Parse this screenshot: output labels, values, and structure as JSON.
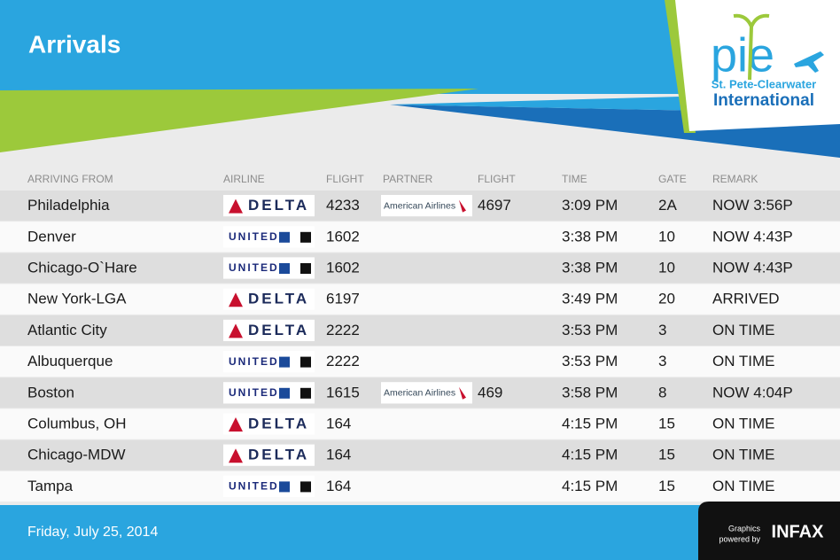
{
  "header": {
    "title": "Arrivals"
  },
  "logo": {
    "mark": "pie",
    "line1": "St. Pete-Clearwater",
    "line2": "International"
  },
  "table": {
    "columns": [
      "ARRIVING FROM",
      "AIRLINE",
      "FLIGHT",
      "PARTNER",
      "FLIGHT",
      "TIME",
      "GATE",
      "REMARK"
    ],
    "rows": [
      [
        "Philadelphia",
        "DELTA",
        "4233",
        "American Airlines",
        "4697",
        "3:09 PM",
        "2A",
        "NOW 3:56P"
      ],
      [
        "Denver",
        "UNITED",
        "1602",
        null,
        null,
        "3:38 PM",
        "10",
        "NOW 4:43P"
      ],
      [
        "Chicago-O`Hare",
        "UNITED",
        "1602",
        null,
        null,
        "3:38 PM",
        "10",
        "NOW 4:43P"
      ],
      [
        "New York-LGA",
        "DELTA",
        "6197",
        null,
        null,
        "3:49 PM",
        "20",
        "ARRIVED"
      ],
      [
        "Atlantic City",
        "DELTA",
        "2222",
        null,
        null,
        "3:53 PM",
        "3",
        "ON TIME"
      ],
      [
        "Albuquerque",
        "UNITED",
        "2222",
        null,
        null,
        "3:53 PM",
        "3",
        "ON TIME"
      ],
      [
        "Boston",
        "UNITED",
        "1615",
        "American Airlines",
        "469",
        "3:58 PM",
        "8",
        "NOW 4:04P"
      ],
      [
        "Columbus, OH",
        "DELTA",
        "164",
        null,
        null,
        "4:15 PM",
        "15",
        "ON TIME"
      ],
      [
        "Chicago-MDW",
        "DELTA",
        "164",
        null,
        null,
        "4:15 PM",
        "15",
        "ON TIME"
      ],
      [
        "Tampa",
        "UNITED",
        "164",
        null,
        null,
        "4:15 PM",
        "15",
        "ON TIME"
      ]
    ]
  },
  "footer": {
    "date": "Friday, July 25, 2014",
    "credit1": "Graphics",
    "credit2": "powered by",
    "brand": "INFAX"
  }
}
